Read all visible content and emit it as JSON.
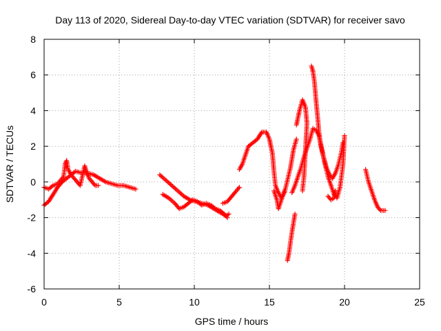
{
  "chart_data": {
    "type": "scatter",
    "title": "Day 113 of 2020, Sidereal Day-to-day VTEC variation (SDTVAR) for receiver savo",
    "xlabel": "GPS time / hours",
    "ylabel": "SDTVAR / TECUs",
    "xlim": [
      0,
      25
    ],
    "ylim": [
      -6,
      8
    ],
    "xticks": [
      "0",
      "5",
      "10",
      "15",
      "20",
      "25"
    ],
    "yticks": [
      "-6",
      "-4",
      "-2",
      "0",
      "2",
      "4",
      "6",
      "8"
    ],
    "grid": true,
    "marker": "plus",
    "color": "#ff0000",
    "series": [
      {
        "name": "seg1",
        "points": [
          [
            0,
            -1.3
          ],
          [
            0.3,
            -1.1
          ],
          [
            0.6,
            -0.7
          ],
          [
            0.9,
            -0.3
          ],
          [
            1.2,
            0.0
          ],
          [
            1.5,
            0.2
          ],
          [
            1.8,
            0.4
          ],
          [
            2.1,
            0.6
          ],
          [
            2.5,
            0.5
          ],
          [
            2.9,
            0.5
          ],
          [
            3.3,
            0.4
          ],
          [
            3.7,
            0.2
          ],
          [
            4.1,
            0.0
          ],
          [
            4.5,
            -0.1
          ],
          [
            4.9,
            -0.2
          ],
          [
            5.3,
            -0.2
          ],
          [
            5.7,
            -0.3
          ],
          [
            6.1,
            -0.4
          ]
        ]
      },
      {
        "name": "seg2",
        "points": [
          [
            0,
            -0.3
          ],
          [
            0.3,
            -0.4
          ],
          [
            0.6,
            -0.2
          ],
          [
            0.9,
            -0.1
          ],
          [
            1.1,
            0.1
          ],
          [
            1.3,
            0.3
          ],
          [
            1.4,
            1.0
          ],
          [
            1.5,
            1.2
          ],
          [
            1.6,
            0.7
          ],
          [
            1.8,
            0.4
          ],
          [
            2.0,
            0.2
          ],
          [
            2.2,
            0.0
          ],
          [
            2.4,
            -0.2
          ],
          [
            2.6,
            0.5
          ],
          [
            2.7,
            0.9
          ],
          [
            2.8,
            0.6
          ],
          [
            3.0,
            0.2
          ],
          [
            3.2,
            0.0
          ],
          [
            3.4,
            -0.2
          ],
          [
            3.6,
            -0.2
          ]
        ]
      },
      {
        "name": "seg3",
        "points": [
          [
            7.7,
            0.4
          ],
          [
            8.1,
            0.1
          ],
          [
            8.5,
            -0.2
          ],
          [
            8.9,
            -0.5
          ],
          [
            9.3,
            -0.8
          ],
          [
            9.7,
            -1.0
          ],
          [
            10.1,
            -1.1
          ],
          [
            10.5,
            -1.2
          ],
          [
            10.9,
            -1.3
          ],
          [
            11.3,
            -1.5
          ],
          [
            11.7,
            -1.7
          ],
          [
            12.1,
            -1.9
          ],
          [
            12.3,
            -1.8
          ]
        ]
      },
      {
        "name": "seg4",
        "points": [
          [
            7.9,
            -0.7
          ],
          [
            8.3,
            -0.9
          ],
          [
            8.7,
            -1.2
          ],
          [
            9.0,
            -1.5
          ],
          [
            9.3,
            -1.4
          ],
          [
            9.6,
            -1.2
          ],
          [
            9.9,
            -1.0
          ],
          [
            10.2,
            -1.1
          ],
          [
            10.5,
            -1.3
          ],
          [
            10.8,
            -1.2
          ],
          [
            11.1,
            -1.3
          ],
          [
            11.4,
            -1.5
          ],
          [
            11.7,
            -1.6
          ],
          [
            12.0,
            -1.8
          ],
          [
            12.2,
            -2.0
          ]
        ]
      },
      {
        "name": "seg5",
        "points": [
          [
            11.9,
            -1.2
          ],
          [
            12.2,
            -1.1
          ],
          [
            12.5,
            -0.8
          ],
          [
            12.8,
            -0.5
          ],
          [
            13.0,
            -0.3
          ]
        ]
      },
      {
        "name": "seg6",
        "points": [
          [
            13.0,
            0.7
          ],
          [
            13.2,
            1.0
          ],
          [
            13.4,
            1.5
          ],
          [
            13.6,
            2.0
          ],
          [
            13.9,
            2.2
          ],
          [
            14.2,
            2.4
          ],
          [
            14.5,
            2.8
          ],
          [
            14.8,
            2.8
          ],
          [
            15.0,
            2.4
          ],
          [
            15.2,
            1.6
          ],
          [
            15.3,
            0.6
          ],
          [
            15.4,
            -0.2
          ],
          [
            15.6,
            -0.6
          ],
          [
            15.8,
            -0.9
          ],
          [
            16.0,
            -0.6
          ],
          [
            16.2,
            0.1
          ],
          [
            16.4,
            0.8
          ],
          [
            16.6,
            1.8
          ],
          [
            16.8,
            2.4
          ]
        ]
      },
      {
        "name": "seg7",
        "points": [
          [
            15.3,
            -0.5
          ],
          [
            15.5,
            -1.0
          ],
          [
            15.6,
            -1.5
          ],
          [
            15.8,
            -1.0
          ],
          [
            16.0,
            -0.5
          ]
        ]
      },
      {
        "name": "seg8",
        "points": [
          [
            16.2,
            -4.4
          ],
          [
            16.3,
            -4.0
          ],
          [
            16.4,
            -3.4
          ],
          [
            16.5,
            -2.8
          ],
          [
            16.6,
            -2.3
          ],
          [
            16.7,
            -1.8
          ]
        ]
      },
      {
        "name": "seg9",
        "points": [
          [
            16.5,
            -0.6
          ],
          [
            16.7,
            -0.2
          ],
          [
            16.9,
            0.3
          ],
          [
            17.1,
            0.8
          ],
          [
            17.3,
            1.4
          ],
          [
            17.5,
            1.9
          ],
          [
            17.7,
            2.4
          ],
          [
            17.9,
            3.0
          ],
          [
            18.1,
            2.9
          ],
          [
            18.3,
            2.6
          ],
          [
            18.5,
            1.8
          ],
          [
            18.7,
            1.0
          ],
          [
            18.9,
            0.3
          ],
          [
            19.1,
            -0.2
          ],
          [
            19.3,
            -0.7
          ],
          [
            19.5,
            -0.9
          ],
          [
            19.7,
            -0.3
          ],
          [
            19.9,
            1.0
          ],
          [
            20.0,
            2.6
          ]
        ]
      },
      {
        "name": "seg10",
        "points": [
          [
            16.8,
            3.2
          ],
          [
            17.0,
            4.0
          ],
          [
            17.2,
            4.6
          ],
          [
            17.4,
            4.2
          ],
          [
            17.5,
            3.3
          ],
          [
            17.4,
            1.8
          ],
          [
            17.3,
            0.3
          ],
          [
            17.2,
            -0.5
          ]
        ]
      },
      {
        "name": "seg11",
        "points": [
          [
            17.8,
            6.5
          ],
          [
            17.9,
            6.2
          ],
          [
            18.0,
            5.6
          ],
          [
            18.1,
            4.6
          ],
          [
            18.2,
            3.7
          ],
          [
            18.3,
            2.8
          ],
          [
            18.4,
            2.1
          ],
          [
            18.6,
            1.4
          ],
          [
            18.8,
            0.8
          ],
          [
            19.0,
            0.4
          ],
          [
            19.2,
            0.2
          ],
          [
            19.4,
            0.5
          ],
          [
            19.6,
            1.0
          ],
          [
            19.8,
            1.7
          ],
          [
            19.9,
            2.2
          ]
        ]
      },
      {
        "name": "seg12",
        "points": [
          [
            18.9,
            -0.8
          ],
          [
            19.1,
            -1.0
          ],
          [
            19.3,
            -0.9
          ],
          [
            19.4,
            -0.5
          ]
        ]
      },
      {
        "name": "seg13",
        "points": [
          [
            21.4,
            0.7
          ],
          [
            21.6,
            0.0
          ],
          [
            21.8,
            -0.5
          ],
          [
            22.0,
            -1.0
          ],
          [
            22.2,
            -1.4
          ],
          [
            22.4,
            -1.6
          ],
          [
            22.7,
            -1.6
          ]
        ]
      }
    ]
  }
}
